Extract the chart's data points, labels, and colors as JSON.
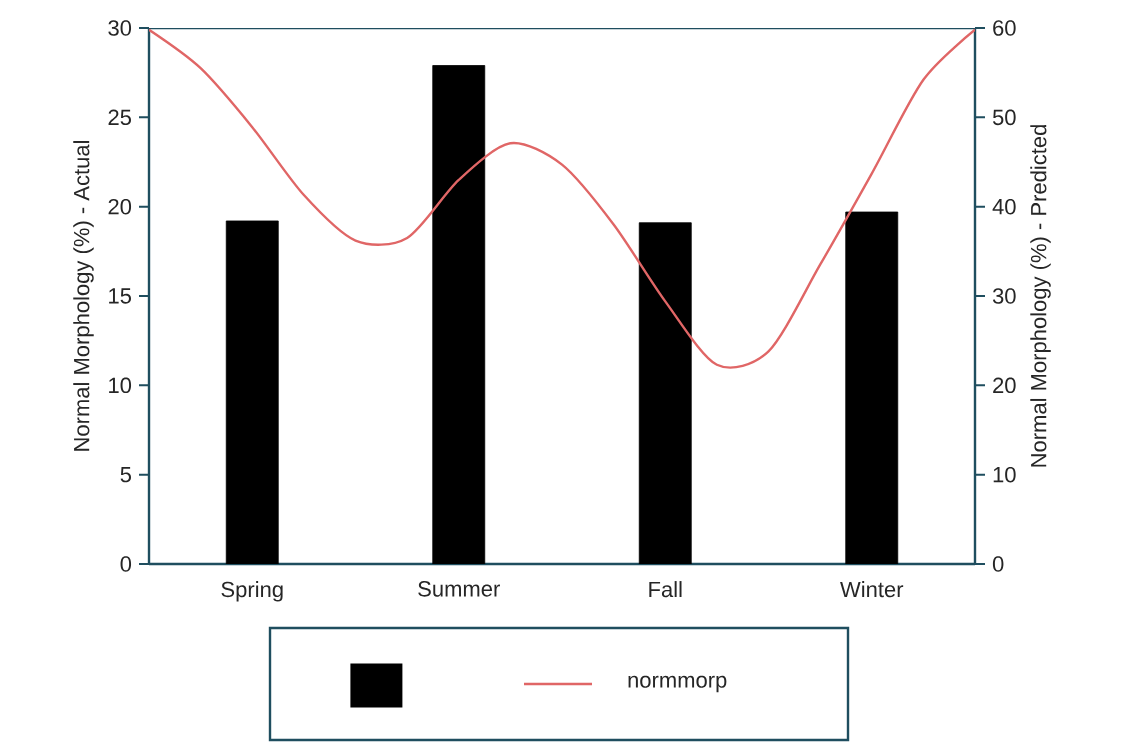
{
  "chart_data": {
    "type": "bar",
    "categories": [
      null,
      null,
      "Spring",
      null,
      null,
      null,
      "Summer",
      null,
      null,
      null,
      "Fall",
      null,
      null,
      null,
      "Winter",
      null,
      null
    ],
    "ylabel": "Normal Morphology (%) - Actual",
    "y2label": "Normal Morphology (%) - Predicted",
    "ylim": [
      0,
      30
    ],
    "yticks": [
      0,
      5,
      10,
      15,
      20,
      25,
      30
    ],
    "y2lim": [
      0,
      60
    ],
    "y2ticks": [
      0,
      10,
      20,
      30,
      40,
      50,
      60
    ],
    "legend": "bottom",
    "series": [
      {
        "color": "#000000",
        "values": [
          null,
          null,
          19.2,
          null,
          null,
          null,
          27.9,
          null,
          null,
          null,
          19.1,
          null,
          null,
          null,
          19.7,
          null,
          null
        ]
      },
      {
        "type": "line",
        "name": "normmorp",
        "color": "#e06666",
        "axis": "y2",
        "values": [
          59.8,
          55.5,
          48.9,
          41.3,
          36.2,
          36.5,
          43.0,
          47.1,
          44.7,
          38.0,
          29.4,
          22.3,
          23.8,
          33.5,
          43.7,
          54.2,
          59.8
        ]
      }
    ]
  }
}
